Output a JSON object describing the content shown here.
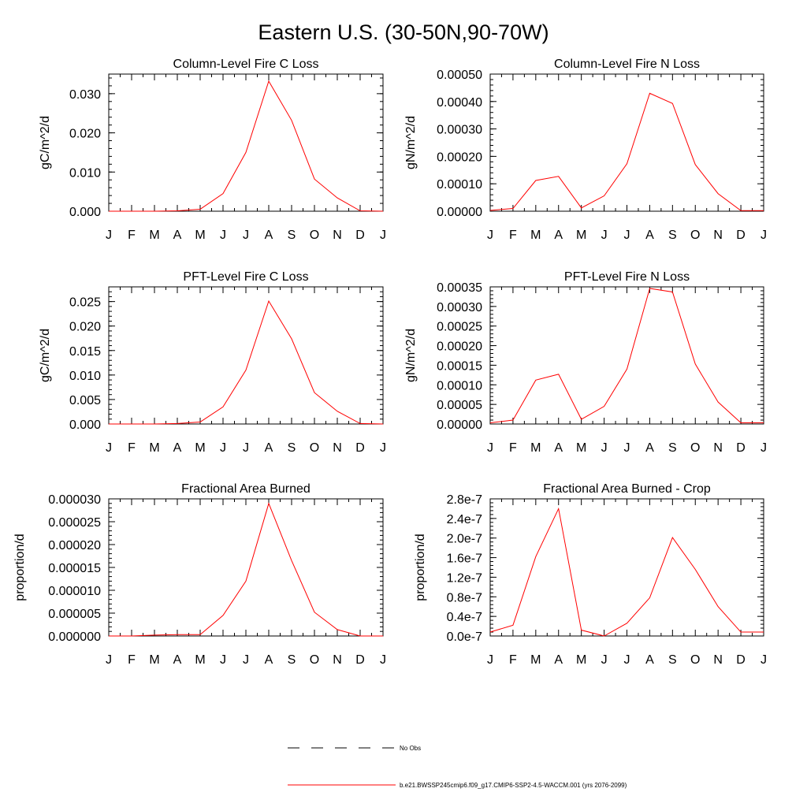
{
  "figure": {
    "title": "Eastern U.S. (30-50N,90-70W)",
    "legend": [
      {
        "label": "No Obs",
        "style": "dashed",
        "color": "#000000"
      },
      {
        "label": "b.e21.BWSSP245cmip6.f09_g17.CMIP6-SSP2-4.5-WACCM.001 (yrs 2076-2099)",
        "style": "solid",
        "color": "#ff0000"
      }
    ]
  },
  "chart_data": [
    {
      "type": "line",
      "title": "Column-Level Fire C Loss",
      "xlabel": "",
      "ylabel": "gC/m^2/d",
      "categories": [
        "J",
        "F",
        "M",
        "A",
        "M",
        "J",
        "J",
        "A",
        "S",
        "O",
        "N",
        "D",
        "J"
      ],
      "ylim": [
        0,
        0.035
      ],
      "yticks": [
        0,
        0.01,
        0.02,
        0.03
      ],
      "ytick_labels": [
        "0.000",
        "0.010",
        "0.020",
        "0.030"
      ],
      "series": [
        {
          "name": "b.e21.BWSSP245cmip6.f09_g17.CMIP6-SSP2-4.5-WACCM.001 (yrs 2076-2099)",
          "color": "#ff0000",
          "values": [
            0.0,
            0.0,
            0.0,
            0.0001,
            0.0005,
            0.0045,
            0.015,
            0.0332,
            0.0232,
            0.0082,
            0.0034,
            0.0001,
            0.0
          ]
        }
      ]
    },
    {
      "type": "line",
      "title": "Column-Level Fire N Loss",
      "xlabel": "",
      "ylabel": "gN/m^2/d",
      "categories": [
        "J",
        "F",
        "M",
        "A",
        "M",
        "J",
        "J",
        "A",
        "S",
        "O",
        "N",
        "D",
        "J"
      ],
      "ylim": [
        0,
        0.0005
      ],
      "yticks": [
        0,
        0.0001,
        0.0002,
        0.0003,
        0.0004,
        0.0005
      ],
      "ytick_labels": [
        "0.00000",
        "0.00010",
        "0.00020",
        "0.00030",
        "0.00040",
        "0.00050"
      ],
      "series": [
        {
          "name": "b.e21.BWSSP245cmip6.f09_g17.CMIP6-SSP2-4.5-WACCM.001 (yrs 2076-2099)",
          "color": "#ff0000",
          "values": [
            3e-06,
            1e-05,
            0.000112,
            0.000127,
            1.2e-05,
            5.6e-05,
            0.000173,
            0.00043,
            0.000393,
            0.00017,
            6.4e-05,
            2e-06,
            2e-06
          ]
        }
      ]
    },
    {
      "type": "line",
      "title": "PFT-Level Fire C Loss",
      "xlabel": "",
      "ylabel": "gC/m^2/d",
      "categories": [
        "J",
        "F",
        "M",
        "A",
        "M",
        "J",
        "J",
        "A",
        "S",
        "O",
        "N",
        "D",
        "J"
      ],
      "ylim": [
        0,
        0.028
      ],
      "yticks": [
        0,
        0.005,
        0.01,
        0.015,
        0.02,
        0.025
      ],
      "ytick_labels": [
        "0.000",
        "0.005",
        "0.010",
        "0.015",
        "0.020",
        "0.025"
      ],
      "series": [
        {
          "name": "b.e21.BWSSP245cmip6.f09_g17.CMIP6-SSP2-4.5-WACCM.001 (yrs 2076-2099)",
          "color": "#ff0000",
          "values": [
            0.0,
            0.0,
            0.0,
            0.0001,
            0.0004,
            0.0035,
            0.011,
            0.0251,
            0.0174,
            0.0064,
            0.0026,
            0.0001,
            0.0
          ]
        }
      ]
    },
    {
      "type": "line",
      "title": "PFT-Level Fire N Loss",
      "xlabel": "",
      "ylabel": "gN/m^2/d",
      "categories": [
        "J",
        "F",
        "M",
        "A",
        "M",
        "J",
        "J",
        "A",
        "S",
        "O",
        "N",
        "D",
        "J"
      ],
      "ylim": [
        0,
        0.00035
      ],
      "yticks": [
        0,
        5e-05,
        0.0001,
        0.00015,
        0.0002,
        0.00025,
        0.0003,
        0.00035
      ],
      "ytick_labels": [
        "0.00000",
        "0.00005",
        "0.00010",
        "0.00015",
        "0.00020",
        "0.00025",
        "0.00030",
        "0.00035"
      ],
      "series": [
        {
          "name": "b.e21.BWSSP245cmip6.f09_g17.CMIP6-SSP2-4.5-WACCM.001 (yrs 2076-2099)",
          "color": "#ff0000",
          "values": [
            3e-06,
            1e-05,
            0.000112,
            0.000127,
            1.2e-05,
            4.5e-05,
            0.00014,
            0.000346,
            0.000337,
            0.000153,
            5.6e-05,
            3e-06,
            3e-06
          ]
        }
      ]
    },
    {
      "type": "line",
      "title": "Fractional Area Burned",
      "xlabel": "",
      "ylabel": "proportion/d",
      "categories": [
        "J",
        "F",
        "M",
        "A",
        "M",
        "J",
        "J",
        "A",
        "S",
        "O",
        "N",
        "D",
        "J"
      ],
      "ylim": [
        0,
        3e-05
      ],
      "yticks": [
        0,
        5e-06,
        1e-05,
        1.5e-05,
        2e-05,
        2.5e-05,
        3e-05
      ],
      "ytick_labels": [
        "0.000000",
        "0.000005",
        "0.000010",
        "0.000015",
        "0.000020",
        "0.000025",
        "0.000030"
      ],
      "series": [
        {
          "name": "b.e21.BWSSP245cmip6.f09_g17.CMIP6-SSP2-4.5-WACCM.001 (yrs 2076-2099)",
          "color": "#ff0000",
          "values": [
            0.0,
            0.0,
            2e-07,
            3e-07,
            3e-07,
            4.5e-06,
            1.2e-05,
            2.9e-05,
            1.65e-05,
            5.2e-06,
            1.4e-06,
            0.0,
            0.0
          ]
        }
      ]
    },
    {
      "type": "line",
      "title": "Fractional Area Burned - Crop",
      "xlabel": "",
      "ylabel": "proportion/d",
      "categories": [
        "J",
        "F",
        "M",
        "A",
        "M",
        "J",
        "J",
        "A",
        "S",
        "O",
        "N",
        "D",
        "J"
      ],
      "ylim": [
        0,
        2.8e-07
      ],
      "yticks": [
        0,
        4e-08,
        8e-08,
        1.2e-07,
        1.6e-07,
        2e-07,
        2.4e-07,
        2.8e-07
      ],
      "ytick_labels": [
        "0.0e-7",
        "0.4e-7",
        "0.8e-7",
        "1.2e-7",
        "1.6e-7",
        "2.0e-7",
        "2.4e-7",
        "2.8e-7"
      ],
      "series": [
        {
          "name": "b.e21.BWSSP245cmip6.f09_g17.CMIP6-SSP2-4.5-WACCM.001 (yrs 2076-2099)",
          "color": "#ff0000",
          "values": [
            8e-09,
            2.2e-08,
            1.62e-07,
            2.6e-07,
            1.2e-08,
            0.0,
            2.6e-08,
            7.8e-08,
            2.01e-07,
            1.36e-07,
            6e-08,
            8e-09,
            8e-09
          ]
        }
      ]
    }
  ]
}
